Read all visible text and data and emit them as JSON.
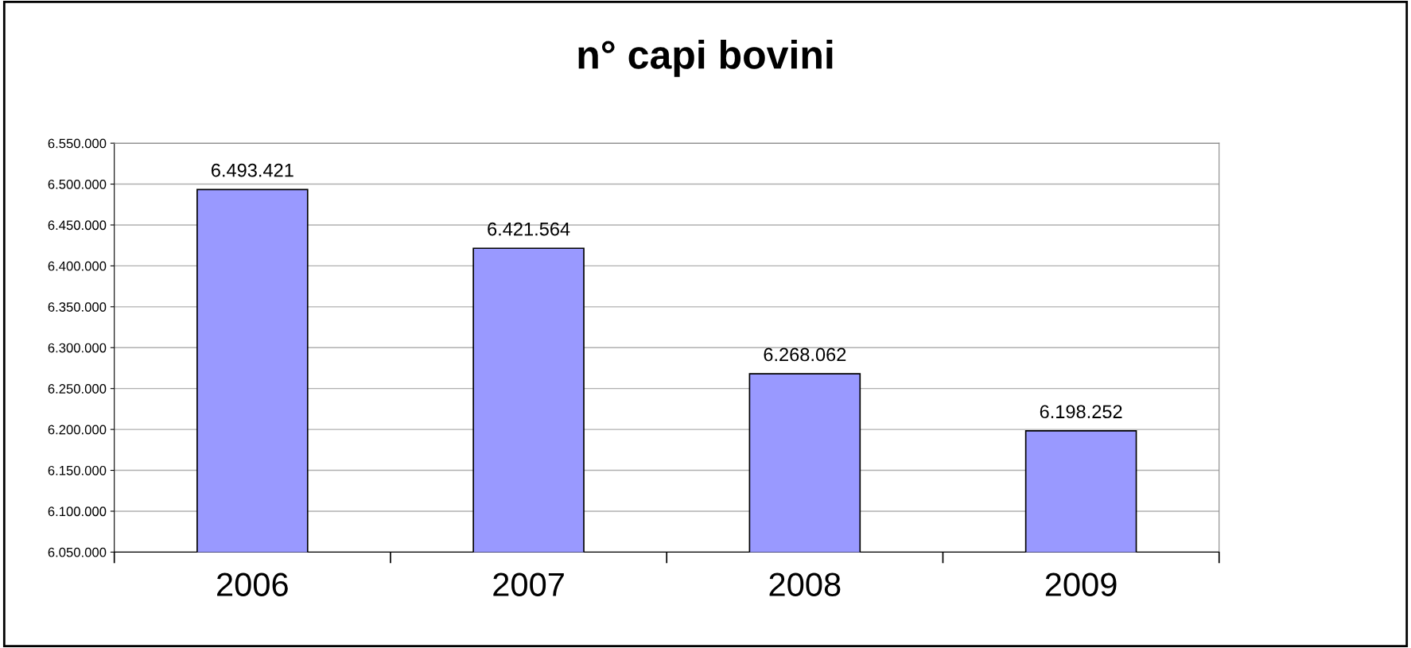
{
  "chart_data": {
    "type": "bar",
    "title": "n° capi bovini",
    "categories": [
      "2006",
      "2007",
      "2008",
      "2009"
    ],
    "values": [
      6493421,
      6421564,
      6268062,
      6198252
    ],
    "value_labels": [
      "6.493.421",
      "6.421.564",
      "6.268.062",
      "6.198.252"
    ],
    "color": "#9999ff",
    "ylim": [
      6050000,
      6550000
    ],
    "yticks": [
      {
        "value": 6050000,
        "label": "6.050.000"
      },
      {
        "value": 6100000,
        "label": "6.100.000"
      },
      {
        "value": 6150000,
        "label": "6.150.000"
      },
      {
        "value": 6200000,
        "label": "6.200.000"
      },
      {
        "value": 6250000,
        "label": "6.250.000"
      },
      {
        "value": 6300000,
        "label": "6.300.000"
      },
      {
        "value": 6350000,
        "label": "6.350.000"
      },
      {
        "value": 6400000,
        "label": "6.400.000"
      },
      {
        "value": 6450000,
        "label": "6.450.000"
      },
      {
        "value": 6500000,
        "label": "6.500.000"
      },
      {
        "value": 6550000,
        "label": "6.550.000"
      }
    ],
    "grid": "y",
    "legend": false
  }
}
